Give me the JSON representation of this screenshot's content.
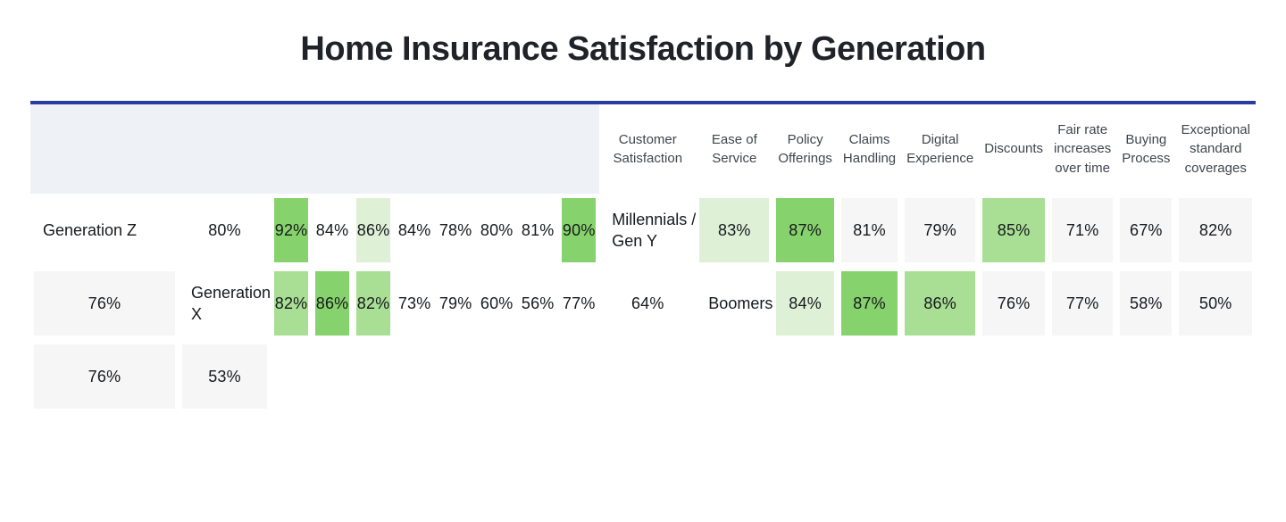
{
  "title": "Home Insurance Satisfaction by Generation",
  "colors": {
    "accent_rule": "#2b3ca0",
    "header_background": "#eef1f6",
    "header_text": "#40454e",
    "value_text": "#16191d",
    "tone_white": "#ffffff",
    "tone_gray": "#f6f6f6",
    "tone_pale_green": "#def0d6",
    "tone_medium_green": "#a8df94",
    "tone_strong_green": "#86d26c"
  },
  "table": {
    "header": {
      "columns": [
        "Customer\nSatisfaction",
        "Ease of\nService",
        "Policy\nOfferings",
        "Claims\nHandling",
        "Digital\nExperience",
        "Discounts",
        "Fair rate\nincreases\nover time",
        "Buying\nProcess",
        "Exceptional\nstandard\ncoverages"
      ]
    },
    "rows": [
      {
        "label": "Generation Z",
        "cells": [
          {
            "value": "80%",
            "tone": "white"
          },
          {
            "value": "92%",
            "tone": "strong"
          },
          {
            "value": "84%",
            "tone": "white"
          },
          {
            "value": "86%",
            "tone": "pale"
          },
          {
            "value": "84%",
            "tone": "white"
          },
          {
            "value": "78%",
            "tone": "white"
          },
          {
            "value": "80%",
            "tone": "white"
          },
          {
            "value": "81%",
            "tone": "white"
          },
          {
            "value": "90%",
            "tone": "strong"
          }
        ]
      },
      {
        "label": "Millennials /\nGen Y",
        "cells": [
          {
            "value": "83%",
            "tone": "pale"
          },
          {
            "value": "87%",
            "tone": "strong"
          },
          {
            "value": "81%",
            "tone": "gray"
          },
          {
            "value": "79%",
            "tone": "gray"
          },
          {
            "value": "85%",
            "tone": "medium"
          },
          {
            "value": "71%",
            "tone": "gray"
          },
          {
            "value": "67%",
            "tone": "gray"
          },
          {
            "value": "82%",
            "tone": "gray"
          },
          {
            "value": "76%",
            "tone": "gray"
          }
        ]
      },
      {
        "label": "Generation X",
        "cells": [
          {
            "value": "82%",
            "tone": "medium"
          },
          {
            "value": "86%",
            "tone": "strong"
          },
          {
            "value": "82%",
            "tone": "medium"
          },
          {
            "value": "73%",
            "tone": "white"
          },
          {
            "value": "79%",
            "tone": "white"
          },
          {
            "value": "60%",
            "tone": "white"
          },
          {
            "value": "56%",
            "tone": "white"
          },
          {
            "value": "77%",
            "tone": "white"
          },
          {
            "value": "64%",
            "tone": "white"
          }
        ]
      },
      {
        "label": "Boomers",
        "cells": [
          {
            "value": "84%",
            "tone": "pale"
          },
          {
            "value": "87%",
            "tone": "strong"
          },
          {
            "value": "86%",
            "tone": "medium"
          },
          {
            "value": "76%",
            "tone": "gray"
          },
          {
            "value": "77%",
            "tone": "gray"
          },
          {
            "value": "58%",
            "tone": "gray"
          },
          {
            "value": "50%",
            "tone": "gray"
          },
          {
            "value": "76%",
            "tone": "gray"
          },
          {
            "value": "53%",
            "tone": "gray"
          }
        ]
      }
    ]
  },
  "chart_data": {
    "type": "heatmap",
    "title": "Home Insurance Satisfaction by Generation",
    "columns": [
      "Customer Satisfaction",
      "Ease of Service",
      "Policy Offerings",
      "Claims Handling",
      "Digital Experience",
      "Discounts",
      "Fair rate increases over time",
      "Buying Process",
      "Exceptional standard coverages"
    ],
    "rows": [
      "Generation Z",
      "Millennials / Gen Y",
      "Generation X",
      "Boomers"
    ],
    "values": [
      [
        80,
        92,
        84,
        86,
        84,
        78,
        80,
        81,
        90
      ],
      [
        83,
        87,
        81,
        79,
        85,
        71,
        67,
        82,
        76
      ],
      [
        82,
        86,
        82,
        73,
        79,
        60,
        56,
        77,
        64
      ],
      [
        84,
        87,
        86,
        76,
        77,
        58,
        50,
        76,
        53
      ]
    ],
    "unit": "%",
    "legend_position": "none",
    "notes": "Green shading intensity marks higher-rated categories; alternate data rows use a light gray cell background"
  }
}
